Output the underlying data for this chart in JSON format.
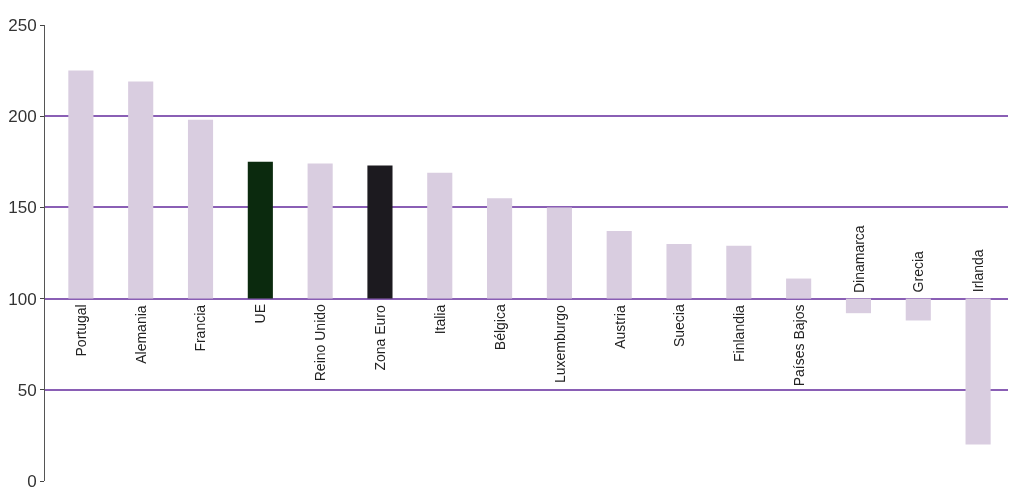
{
  "chart_data": {
    "type": "bar",
    "categories": [
      "Portugal",
      "Alemania",
      "Francia",
      "UE",
      "Reino Unido",
      "Zona Euro",
      "Italia",
      "Bélgica",
      "Luxemburgo",
      "Austria",
      "Suecia",
      "Finlandia",
      "Países Bajos",
      "Dinamarca",
      "Grecia",
      "Irlanda"
    ],
    "base": [
      100,
      100,
      100,
      100,
      100,
      100,
      100,
      100,
      100,
      100,
      100,
      100,
      100,
      100,
      100,
      100
    ],
    "values": [
      125,
      119,
      98,
      75,
      74,
      73,
      69,
      55,
      50,
      37,
      30,
      29,
      11,
      -8,
      -12,
      -80
    ],
    "colors": [
      "#d9cde0",
      "#d9cde0",
      "#d9cde0",
      "#0b2a0e",
      "#d9cde0",
      "#1c1a1f",
      "#d9cde0",
      "#d9cde0",
      "#d9cde0",
      "#d9cde0",
      "#d9cde0",
      "#d9cde0",
      "#d9cde0",
      "#d9cde0",
      "#d9cde0",
      "#d9cde0"
    ],
    "ylim": [
      0,
      250
    ],
    "yticks": [
      0,
      50,
      100,
      150,
      200,
      250
    ],
    "grid": "y"
  }
}
